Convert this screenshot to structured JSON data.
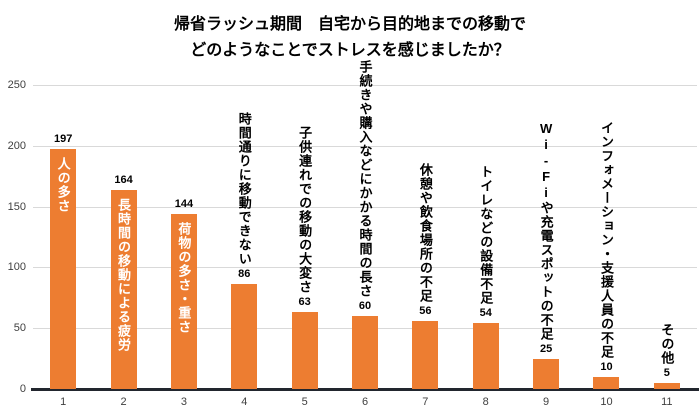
{
  "title": {
    "line1": "帰省ラッシュ期間　自宅から目的地までの移動で",
    "line2": "どのようなことでストレスを感じましたか？"
  },
  "chart_data": {
    "type": "bar",
    "title": "帰省ラッシュ期間　自宅から目的地までの移動で どのようなことでストレスを感じましたか？",
    "categories": [
      "1",
      "2",
      "3",
      "4",
      "5",
      "6",
      "7",
      "8",
      "9",
      "10",
      "11"
    ],
    "labels": [
      "人の多さ",
      "長時間の移動による疲労",
      "荷物の多さ・重さ",
      "時間通りに移動できない",
      "子供連れでの移動の大変さ",
      "手続きや購入などにかかる時間の長さ",
      "休憩や飲食場所の不足",
      "トイレなどの設備不足",
      "Wi-Fiや充電スポットの不足",
      "インフォメーション・支援人員の不足",
      "その他"
    ],
    "values": [
      197,
      164,
      144,
      86,
      63,
      60,
      56,
      54,
      25,
      10,
      5
    ],
    "label_placement": [
      "inside",
      "inside",
      "inside",
      "above",
      "above",
      "above",
      "above",
      "above",
      "above",
      "above",
      "above"
    ],
    "yticks": [
      0,
      50,
      100,
      150,
      200,
      250
    ],
    "ylim": [
      0,
      250
    ],
    "xlabel": "",
    "ylabel": "",
    "bar_color": "#ED7D31",
    "inside_label_color": "#FFFFFF",
    "grid": true,
    "legend": "none"
  }
}
